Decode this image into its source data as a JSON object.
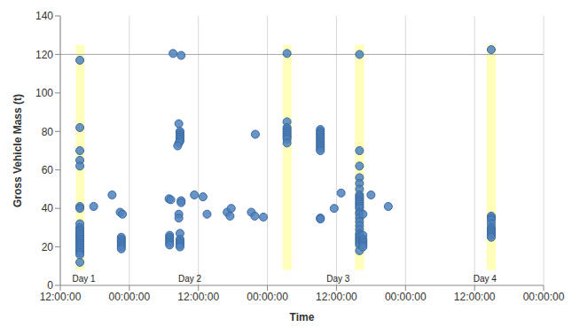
{
  "chart_data": {
    "type": "scatter",
    "x_label": "Time",
    "y_label": "Gross Vehicle Mass (t)",
    "color": "#4f81bd",
    "marker": "circle",
    "grid": true,
    "xlim": [
      0,
      84
    ],
    "xticks": [
      {
        "value": 0,
        "label": "12:00:00"
      },
      {
        "value": 12,
        "label": "00:00:00"
      },
      {
        "value": 24,
        "label": "12:00:00"
      },
      {
        "value": 36,
        "label": "00:00:00"
      },
      {
        "value": 48,
        "label": "12:00:00"
      },
      {
        "value": 60,
        "label": "00:00:00"
      },
      {
        "value": 72,
        "label": "12:00:00"
      },
      {
        "value": 84,
        "label": "00:00:00"
      }
    ],
    "ylim": [
      0,
      140
    ],
    "yticks": [
      0,
      20,
      40,
      60,
      80,
      100,
      120,
      140
    ],
    "threshold": 120,
    "highlights": [
      {
        "x": [
          2.7,
          4.2
        ],
        "y": [
          8,
          125
        ]
      },
      {
        "x": [
          38.7,
          40.2
        ],
        "y": [
          8,
          125
        ]
      },
      {
        "x": [
          51.2,
          52.8
        ],
        "y": [
          8,
          125
        ]
      },
      {
        "x": [
          74.1,
          75.7
        ],
        "y": [
          8,
          125
        ]
      }
    ],
    "annotations": [
      {
        "text": "Day 1",
        "x": 4.1,
        "y": 3.5
      },
      {
        "text": "Day 2",
        "x": 22.5,
        "y": 3.5
      },
      {
        "text": "Day 3",
        "x": 48.3,
        "y": 3.5
      },
      {
        "text": "Day 4",
        "x": 73.8,
        "y": 3.5
      }
    ],
    "x": [
      3.4,
      3.4,
      3.4,
      3.4,
      3.4,
      3.4,
      3.4,
      3.4,
      3.4,
      3.4,
      3.4,
      3.4,
      3.4,
      3.4,
      3.4,
      3.4,
      3.4,
      3.4,
      3.4,
      3.4,
      3.4,
      3.4,
      3.4,
      3.4,
      5.8,
      9.0,
      10.4,
      10.8,
      10.6,
      10.6,
      10.6,
      10.6,
      10.6,
      10.6,
      10.6,
      19.6,
      21.0,
      20.6,
      20.8,
      20.8,
      20.8,
      20.8,
      20.8,
      20.8,
      20.6,
      20.4,
      18.9,
      19.2,
      21.0,
      21.0,
      20.6,
      20.6,
      19.0,
      19.0,
      19.0,
      19.0,
      19.0,
      19.0,
      20.8,
      20.8,
      20.8,
      20.8,
      20.8,
      20.8,
      23.3,
      24.8,
      25.5,
      29.0,
      29.7,
      29.5,
      33.9,
      33.2,
      33.8,
      35.3,
      39.4,
      39.4,
      39.4,
      39.4,
      39.4,
      39.4,
      39.4,
      39.4,
      39.4,
      39.4,
      45.2,
      45.2,
      45.2,
      45.2,
      45.2,
      45.2,
      45.2,
      45.2,
      45.2,
      45.2,
      45.2,
      45.2,
      45.2,
      45.2,
      47.6,
      48.8,
      52.0,
      52.0,
      52.0,
      52.0,
      52.0,
      52.0,
      52.0,
      52.0,
      52.0,
      52.0,
      52.0,
      52.0,
      52.0,
      52.0,
      52.0,
      52.0,
      52.0,
      52.0,
      52.0,
      52.0,
      52.0,
      52.0,
      52.0,
      52.0,
      52.0,
      52.0,
      52.0,
      52.0,
      52.6,
      52.6,
      52.6,
      52.6,
      52.6,
      52.6,
      52.6,
      54.0,
      57.0,
      74.9,
      74.9,
      74.9,
      74.9,
      74.9,
      74.9,
      74.9,
      74.9,
      74.9,
      74.9,
      74.9
    ],
    "values": [
      117,
      82,
      70,
      65,
      62,
      41,
      40,
      32,
      30,
      29,
      28,
      27,
      26,
      25,
      24,
      23,
      22,
      21,
      20,
      19,
      18,
      17,
      16,
      12,
      41,
      47,
      38,
      37,
      25,
      24,
      23,
      22,
      21,
      20,
      19,
      120.5,
      119.5,
      84,
      80,
      79,
      78,
      77,
      76,
      75,
      74,
      72.5,
      45,
      44.5,
      44,
      43,
      37,
      35,
      26,
      25,
      24,
      23,
      22,
      21,
      27,
      24,
      23,
      22,
      21,
      20,
      47,
      46,
      37,
      38,
      40,
      36,
      78.5,
      38,
      36,
      35.5,
      120.5,
      85,
      82,
      81,
      80,
      79,
      78,
      77,
      76,
      74,
      81,
      80,
      79,
      78,
      77,
      76,
      75,
      74,
      73,
      72,
      71,
      70,
      35,
      34.5,
      40,
      48,
      120,
      70,
      62,
      56,
      53,
      50,
      47,
      46,
      45,
      44,
      43,
      42,
      41,
      40,
      38,
      37,
      35,
      33,
      31,
      29,
      27,
      26,
      25,
      24,
      23,
      22,
      21,
      18,
      37,
      26,
      24,
      23,
      22,
      21,
      20,
      47,
      41,
      122.5,
      36,
      35,
      34,
      32,
      30,
      29,
      28,
      27,
      26,
      25
    ]
  }
}
